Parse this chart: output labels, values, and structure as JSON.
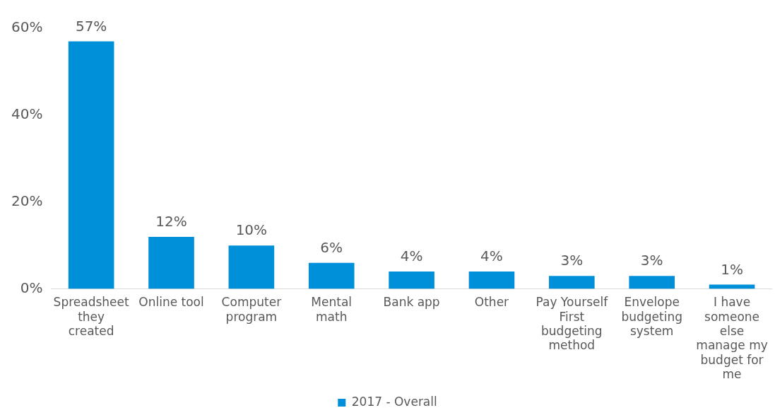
{
  "chart_data": {
    "type": "bar",
    "categories": [
      "Spreadsheet they created",
      "Online tool",
      "Computer program",
      "Mental math",
      "Bank app",
      "Other",
      "Pay Yourself First budgeting method",
      "Envelope budgeting system",
      "I have someone else manage my budget for me"
    ],
    "series": [
      {
        "name": "2017 - Overall",
        "color": "#0090da",
        "values": [
          57,
          12,
          10,
          6,
          4,
          4,
          3,
          3,
          1
        ]
      }
    ],
    "ylim": [
      0,
      60
    ],
    "yticks": [
      {
        "value": 0,
        "label": "0%"
      },
      {
        "value": 20,
        "label": "20%"
      },
      {
        "value": 40,
        "label": "40%"
      },
      {
        "value": 60,
        "label": "60%"
      }
    ],
    "value_labels": [
      "57%",
      "12%",
      "10%",
      "6%",
      "4%",
      "4%",
      "3%",
      "3%",
      "1%"
    ],
    "grid": false,
    "legend": "bottom"
  }
}
